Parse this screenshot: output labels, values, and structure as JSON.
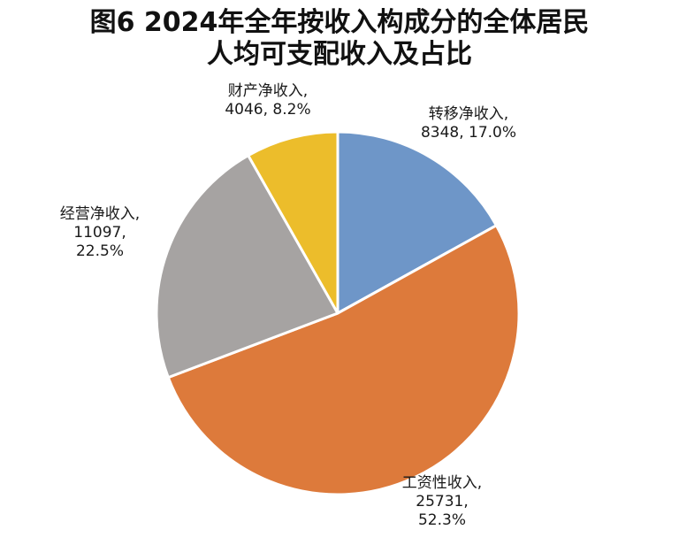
{
  "chart_data": {
    "type": "pie",
    "title_lines": [
      "图6  2024年全年按收入构成分的全体居民",
      "人均可支配收入及占比"
    ],
    "slices": [
      {
        "name": "转移净收入",
        "value": 8348,
        "percent": 17.0,
        "color": "#6e96c8",
        "label_lines": [
          "转移净收入,",
          "8348, 17.0%"
        ]
      },
      {
        "name": "工资性收入",
        "value": 25731,
        "percent": 52.3,
        "color": "#dd7a3b",
        "label_lines": [
          "工资性收入,",
          "25731,",
          "52.3%"
        ]
      },
      {
        "name": "经营净收入",
        "value": 11097,
        "percent": 22.5,
        "color": "#a6a3a2",
        "label_lines": [
          "经营净收入,",
          "11097,",
          "22.5%"
        ]
      },
      {
        "name": "财产净收入",
        "value": 4046,
        "percent": 8.2,
        "color": "#ecbd2b",
        "label_lines": [
          "财产净收入,",
          "4046, 8.2%"
        ]
      }
    ],
    "legend": "none"
  }
}
